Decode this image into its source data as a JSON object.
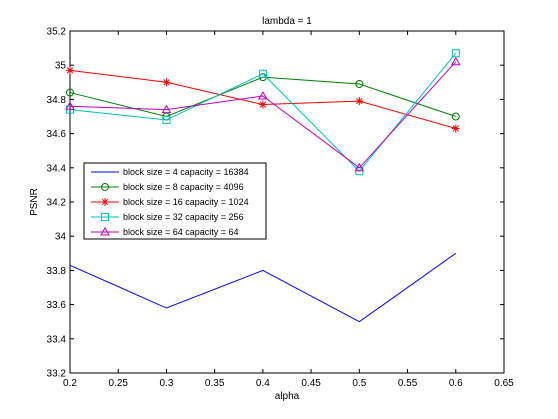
{
  "chart_data": {
    "type": "line",
    "title": "lambda = 1",
    "xlabel": "alpha",
    "ylabel": "PSNR",
    "xlim": [
      0.2,
      0.65
    ],
    "ylim": [
      33.2,
      35.2
    ],
    "xticks": [
      "0.2",
      "0.25",
      "0.3",
      "0.35",
      "0.4",
      "0.45",
      "0.5",
      "0.55",
      "0.6",
      "0.65"
    ],
    "yticks": [
      "33.2",
      "33.4",
      "33.6",
      "33.8",
      "34",
      "34.2",
      "34.4",
      "34.6",
      "34.8",
      "35",
      "35.2"
    ],
    "grid": false,
    "legend_position": "left",
    "x": [
      0.2,
      0.3,
      0.4,
      0.5,
      0.6
    ],
    "series": [
      {
        "name": "block size = 4 capacity = 16384",
        "color": "#0000ff",
        "marker": "none",
        "values": [
          33.83,
          33.58,
          33.8,
          33.5,
          33.9
        ]
      },
      {
        "name": "block size = 8 capacity = 4096",
        "color": "#007f00",
        "marker": "circle",
        "values": [
          34.84,
          34.7,
          34.93,
          34.89,
          34.7
        ]
      },
      {
        "name": "block size = 16 capacity = 1024",
        "color": "#ff0000",
        "marker": "star",
        "values": [
          34.97,
          34.9,
          34.77,
          34.79,
          34.63
        ]
      },
      {
        "name": "block size = 32 capacity = 256",
        "color": "#00bfbf",
        "marker": "square",
        "values": [
          34.74,
          34.68,
          34.95,
          34.38,
          35.07
        ]
      },
      {
        "name": "block size = 64 capacity = 64",
        "color": "#bf00bf",
        "marker": "triangle",
        "values": [
          34.76,
          34.74,
          34.82,
          34.4,
          35.02
        ]
      }
    ]
  }
}
